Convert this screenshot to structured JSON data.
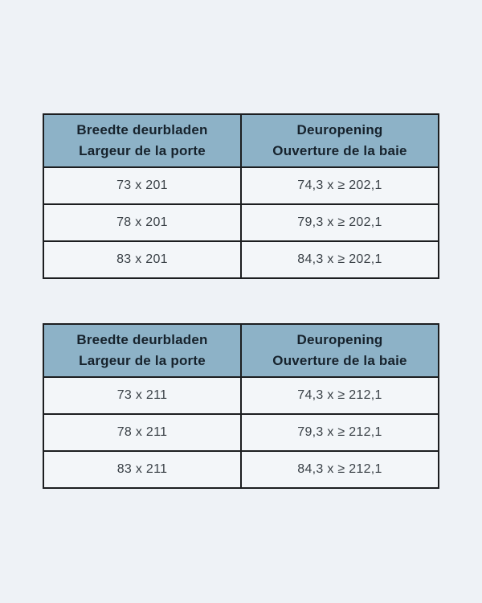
{
  "colors": {
    "page_bg": "#eef2f6",
    "header_bg": "#8db2c7",
    "header_text": "#16222c",
    "cell_bg": "#f3f6f9",
    "cell_text": "#3a4147",
    "border": "#1c1e20"
  },
  "tables": [
    {
      "headers": [
        {
          "line1": "Breedte deurbladen",
          "line2": "Largeur de la porte"
        },
        {
          "line1": "Deuropening",
          "line2": "Ouverture de la baie"
        }
      ],
      "rows": [
        [
          "73 x 201",
          "74,3 x ≥ 202,1"
        ],
        [
          "78 x 201",
          "79,3 x ≥ 202,1"
        ],
        [
          "83 x 201",
          "84,3 x ≥ 202,1"
        ]
      ]
    },
    {
      "headers": [
        {
          "line1": "Breedte deurbladen",
          "line2": "Largeur de la porte"
        },
        {
          "line1": "Deuropening",
          "line2": "Ouverture de la baie"
        }
      ],
      "rows": [
        [
          "73 x 211",
          "74,3 x ≥ 212,1"
        ],
        [
          "78 x 211",
          "79,3 x ≥ 212,1"
        ],
        [
          "83 x 211",
          "84,3 x ≥ 212,1"
        ]
      ]
    }
  ]
}
